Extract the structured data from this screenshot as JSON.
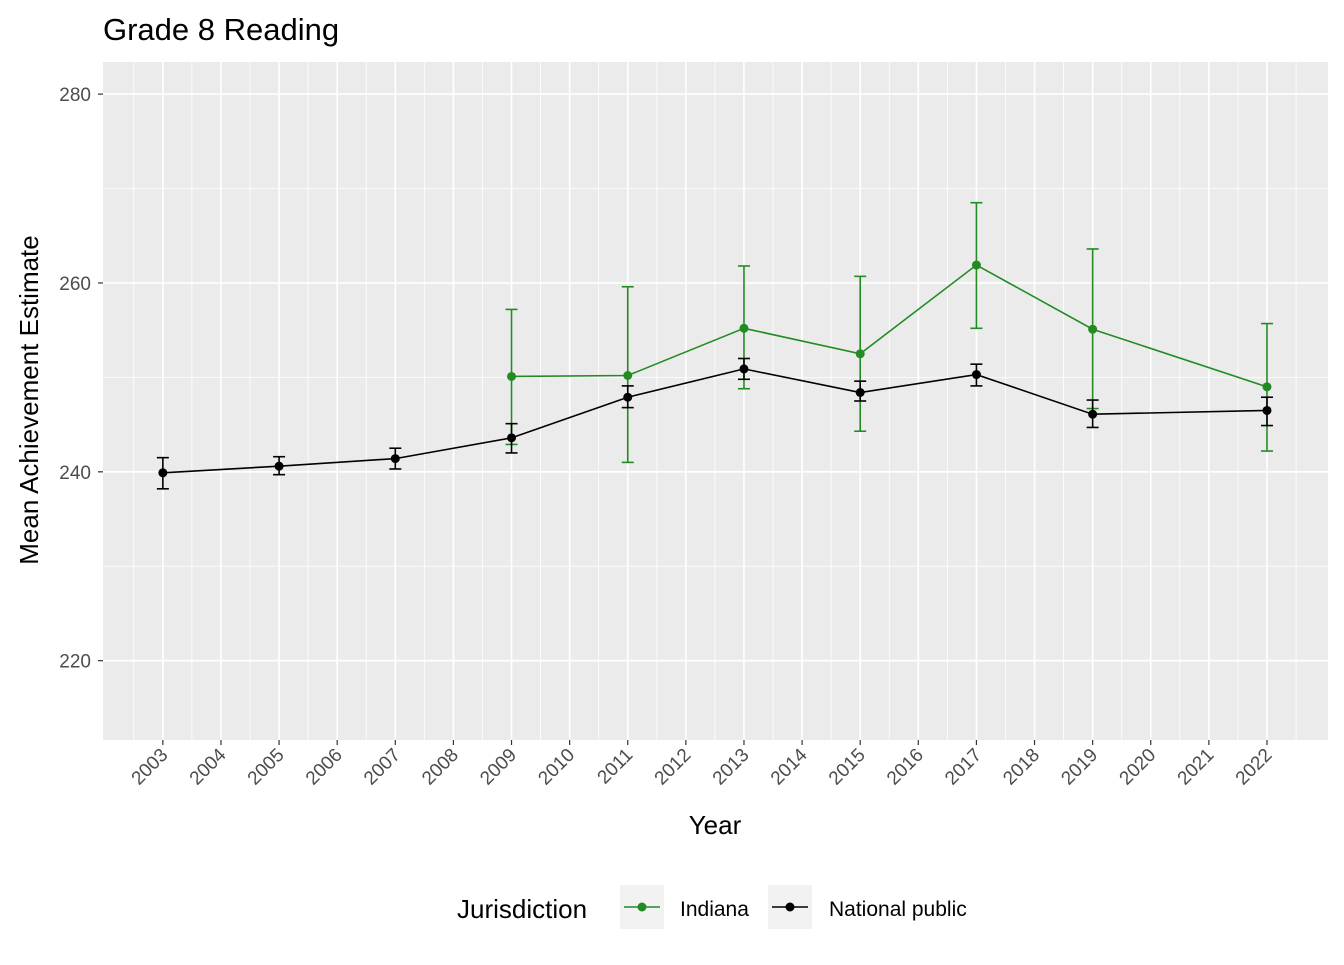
{
  "chart_data": {
    "type": "line",
    "title": "Grade 8 Reading",
    "xlabel": "Year",
    "ylabel": "Mean Achievement Estimate",
    "xlim": [
      2001.97,
      2023.05
    ],
    "ylim": [
      211.6,
      283.4
    ],
    "x_ticks": [
      2003,
      2004,
      2005,
      2006,
      2007,
      2008,
      2009,
      2010,
      2011,
      2012,
      2013,
      2014,
      2015,
      2016,
      2017,
      2018,
      2019,
      2020,
      2021,
      2022
    ],
    "y_ticks": [
      220,
      240,
      260,
      280
    ],
    "grid": true,
    "legend": {
      "title": "Jurisdiction",
      "position": "bottom"
    },
    "series": [
      {
        "name": "Indiana",
        "color": "#228B22",
        "x": [
          2009,
          2011,
          2013,
          2015,
          2017,
          2019,
          2022
        ],
        "y": [
          250.1,
          250.2,
          255.2,
          252.5,
          261.9,
          255.1,
          249.0
        ],
        "upper": [
          257.2,
          259.6,
          261.8,
          260.7,
          268.5,
          263.6,
          255.7
        ],
        "lower": [
          242.9,
          241.0,
          248.8,
          244.3,
          255.2,
          246.7,
          242.2
        ]
      },
      {
        "name": "National public",
        "color": "#000000",
        "x": [
          2003,
          2005,
          2007,
          2009,
          2011,
          2013,
          2015,
          2017,
          2019,
          2022
        ],
        "y": [
          239.9,
          240.6,
          241.4,
          243.6,
          247.9,
          250.9,
          248.4,
          250.3,
          246.1,
          246.5
        ],
        "upper": [
          241.5,
          241.6,
          242.5,
          245.1,
          249.1,
          252.0,
          249.6,
          251.4,
          247.6,
          247.9
        ],
        "lower": [
          238.2,
          239.7,
          240.3,
          242.0,
          246.8,
          249.8,
          247.5,
          249.1,
          244.7,
          244.9
        ]
      }
    ]
  }
}
